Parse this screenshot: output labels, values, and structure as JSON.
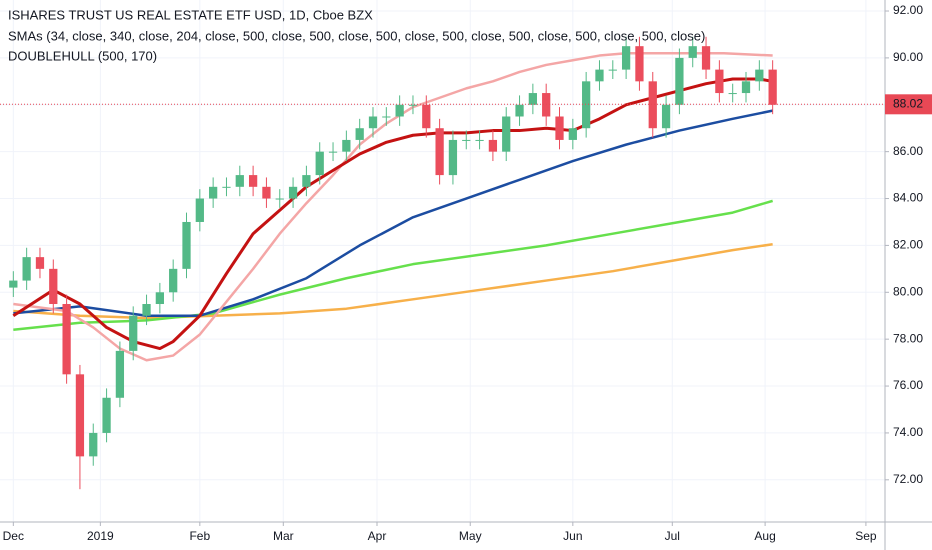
{
  "chart_data": {
    "type": "candlestick",
    "title": "ISHARES TRUST US REAL ESTATE ETF USD, 1D, Cboe BZX",
    "indicator_1": "SMAs (34, close, 340, close, 204, close, 500, close, 500, close, 500, close, 500, close, 500, close, 500, close, 500, close)",
    "indicator_2": "DOUBLEHULL (500, 170)",
    "up_color": "#53b987",
    "down_color": "#eb4d5c",
    "grid": true,
    "last_price": 88.02,
    "last_price_color": "#e84855",
    "xlim": [
      -3,
      196.3
    ],
    "xticks": [
      {
        "value": 0,
        "label": "Dec"
      },
      {
        "value": 19.6,
        "label": "2019"
      },
      {
        "value": 42,
        "label": "Feb"
      },
      {
        "value": 60.8,
        "label": "Mar"
      },
      {
        "value": 81.9,
        "label": "Apr"
      },
      {
        "value": 102.9,
        "label": "May"
      },
      {
        "value": 126,
        "label": "Jun"
      },
      {
        "value": 148.4,
        "label": "Jul"
      },
      {
        "value": 169.3,
        "label": "Aug"
      },
      {
        "value": 192,
        "label": "Sep"
      }
    ],
    "ylim": [
      70.2,
      92.47
    ],
    "yticks": [
      {
        "value": 72,
        "label": "72.00"
      },
      {
        "value": 74,
        "label": "74.00"
      },
      {
        "value": 76,
        "label": "76.00"
      },
      {
        "value": 78,
        "label": "78.00"
      },
      {
        "value": 80,
        "label": "80.00"
      },
      {
        "value": 82,
        "label": "82.00"
      },
      {
        "value": 84,
        "label": "84.00"
      },
      {
        "value": 86,
        "label": "86.00"
      },
      {
        "value": 88,
        "label": "88.00"
      },
      {
        "value": 90,
        "label": "90.00"
      },
      {
        "value": 92,
        "label": "92.00"
      }
    ],
    "candles": {
      "x": [
        0,
        3,
        6,
        9,
        12,
        15,
        18,
        21,
        24,
        27,
        30,
        33,
        36,
        39,
        42,
        45,
        48,
        51,
        54,
        57,
        60,
        63,
        66,
        69,
        72,
        75,
        78,
        81,
        84,
        87,
        90,
        93,
        96,
        99,
        102,
        105,
        108,
        111,
        114,
        117,
        120,
        123,
        126,
        129,
        132,
        135,
        138,
        141,
        144,
        147,
        150,
        153,
        156,
        159,
        162,
        165,
        168,
        171
      ],
      "open": [
        80.2,
        80.5,
        81.5,
        81,
        79.5,
        76.5,
        73,
        74,
        75.5,
        77.5,
        79,
        79.5,
        80,
        81,
        83,
        84,
        84.5,
        84.5,
        85,
        84.5,
        84,
        84,
        84.5,
        85,
        86,
        86,
        86.5,
        87,
        87.5,
        87.5,
        88,
        88,
        87,
        85,
        86.5,
        86.5,
        86.5,
        86,
        87.5,
        88,
        88.5,
        87.5,
        86.5,
        87,
        89,
        89.5,
        89.5,
        90.5,
        89,
        87,
        88,
        90,
        90.5,
        89.5,
        88.5,
        88.5,
        89,
        89.5
      ],
      "high": [
        80.9,
        81.9,
        81.9,
        81.4,
        79.9,
        76.9,
        74.4,
        75.9,
        77.9,
        79.4,
        79.9,
        80.4,
        81.4,
        83.4,
        84.4,
        84.9,
        84.9,
        85.4,
        85.4,
        84.9,
        84.4,
        84.9,
        85.4,
        86.4,
        86.4,
        86.9,
        87.4,
        87.9,
        87.9,
        88.4,
        88.4,
        88.4,
        87.4,
        86.9,
        86.9,
        86.9,
        86.9,
        87.9,
        88.4,
        88.9,
        88.9,
        87.9,
        87.4,
        89.4,
        89.9,
        89.9,
        90.9,
        90.9,
        89.4,
        88.4,
        90.4,
        90.9,
        90.9,
        89.9,
        88.9,
        89.4,
        89.9,
        89.9
      ],
      "low": [
        79.8,
        80.1,
        80.6,
        79.1,
        76.1,
        71.6,
        72.6,
        73.6,
        75.1,
        77.1,
        78.6,
        79.1,
        79.6,
        80.6,
        82.6,
        83.6,
        84.1,
        84.1,
        84.1,
        83.6,
        83.6,
        83.6,
        84.1,
        84.6,
        85.6,
        85.6,
        86.1,
        86.6,
        87.1,
        87.1,
        87.6,
        86.6,
        84.6,
        84.6,
        86.1,
        86.1,
        85.6,
        85.6,
        87.1,
        87.6,
        87.1,
        86.1,
        86.1,
        86.6,
        88.6,
        89.1,
        89.1,
        88.6,
        86.6,
        86.6,
        87.6,
        89.6,
        89.1,
        88.1,
        88.1,
        88.1,
        88.6,
        87.6
      ],
      "close": [
        80.5,
        81.5,
        81,
        79.5,
        76.5,
        73,
        74,
        75.5,
        77.5,
        79,
        79.5,
        80,
        81,
        83,
        84,
        84.5,
        84.5,
        85,
        84.5,
        84,
        84,
        84.5,
        85,
        86,
        86,
        86.5,
        87,
        87.5,
        87.5,
        88,
        88,
        87,
        85,
        86.5,
        86.5,
        86.5,
        86,
        87.5,
        88,
        88.5,
        87.5,
        86.5,
        87,
        89,
        89.5,
        89.5,
        90.5,
        89,
        87,
        88,
        90,
        90.5,
        89.5,
        88.5,
        88.5,
        89,
        89.5,
        88
      ]
    },
    "series": [
      {
        "color": "#f7b04a",
        "x": [
          0,
          15,
          30,
          60,
          75,
          90,
          105,
          120,
          135,
          150,
          162,
          171
        ],
        "values": [
          79.2,
          79,
          78.9,
          79.1,
          79.3,
          79.7,
          80.1,
          80.5,
          80.9,
          81.4,
          81.8,
          82.05
        ]
      },
      {
        "color": "#66e04c",
        "x": [
          0,
          15,
          30,
          45,
          60,
          75,
          90,
          105,
          120,
          135,
          150,
          162,
          171
        ],
        "values": [
          78.4,
          78.7,
          78.8,
          79.1,
          79.9,
          80.6,
          81.2,
          81.6,
          82,
          82.5,
          83,
          83.4,
          83.9
        ]
      },
      {
        "color": "#1c4da1",
        "x": [
          0,
          15,
          30,
          42,
          54,
          66,
          78,
          90,
          102,
          114,
          126,
          138,
          150,
          162,
          171
        ],
        "values": [
          79.1,
          79.4,
          79,
          79,
          79.7,
          80.6,
          82,
          83.2,
          84,
          84.8,
          85.6,
          86.3,
          86.9,
          87.4,
          87.75
        ]
      },
      {
        "color": "#f4a6a6",
        "x": [
          0,
          12,
          18,
          24,
          30,
          36,
          42,
          48,
          54,
          60,
          66,
          72,
          78,
          84,
          90,
          96,
          102,
          108,
          114,
          120,
          126,
          132,
          138,
          150,
          160,
          171
        ],
        "values": [
          79.5,
          79.2,
          78.5,
          77.6,
          77.1,
          77.3,
          78.2,
          79.6,
          81,
          82.5,
          83.8,
          85,
          86.3,
          87.2,
          87.9,
          88.3,
          88.7,
          89,
          89.4,
          89.7,
          89.9,
          90.1,
          90.2,
          90.2,
          90.2,
          90.1
        ]
      },
      {
        "color": "#c41212",
        "x": [
          0,
          9,
          15,
          21,
          27,
          33,
          36,
          42,
          48,
          54,
          60,
          66,
          72,
          78,
          84,
          90,
          96,
          102,
          108,
          114,
          120,
          126,
          132,
          138,
          144,
          150,
          156,
          162,
          168,
          171
        ],
        "values": [
          79,
          80.1,
          79.5,
          78.5,
          77.9,
          77.6,
          77.9,
          79,
          80.8,
          82.5,
          83.5,
          84.5,
          85.2,
          85.9,
          86.4,
          86.7,
          86.8,
          86.8,
          86.9,
          86.9,
          87,
          86.9,
          87.4,
          88,
          88.3,
          88.6,
          88.9,
          89.1,
          89.1,
          89
        ]
      }
    ]
  }
}
